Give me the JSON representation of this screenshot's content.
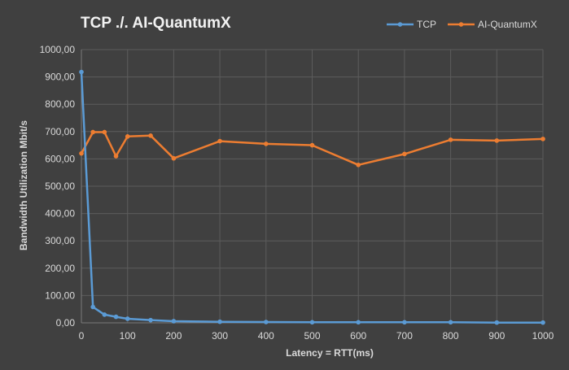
{
  "chart_data": {
    "type": "line",
    "title": "TCP ./. AI-QuantumX",
    "xlabel": "Latency = RTT(ms)",
    "ylabel": "Bandwidth Utilization Mbit/s",
    "xlim": [
      0,
      1000
    ],
    "ylim": [
      0,
      1000
    ],
    "x_ticks": [
      "0",
      "100",
      "200",
      "300",
      "400",
      "500",
      "600",
      "700",
      "800",
      "900",
      "1000"
    ],
    "y_ticks": [
      "0,00",
      "100,00",
      "200,00",
      "300,00",
      "400,00",
      "500,00",
      "600,00",
      "700,00",
      "800,00",
      "900,00",
      "1000,00"
    ],
    "grid": true,
    "legend_position": "top-right",
    "series": [
      {
        "name": "TCP",
        "color": "#5b9bd5",
        "x": [
          0,
          25,
          50,
          75,
          100,
          150,
          200,
          300,
          400,
          500,
          600,
          700,
          800,
          900,
          1000
        ],
        "y": [
          918,
          58,
          30,
          22,
          15,
          10,
          6,
          4,
          3,
          2,
          2,
          2,
          2,
          1,
          1
        ]
      },
      {
        "name": "AI-QuantumX",
        "color": "#ed7d31",
        "x": [
          0,
          25,
          50,
          75,
          100,
          150,
          200,
          300,
          400,
          500,
          600,
          700,
          800,
          900,
          1000
        ],
        "y": [
          620,
          698,
          698,
          610,
          682,
          685,
          602,
          665,
          655,
          650,
          578,
          618,
          670,
          667,
          673
        ]
      }
    ]
  }
}
